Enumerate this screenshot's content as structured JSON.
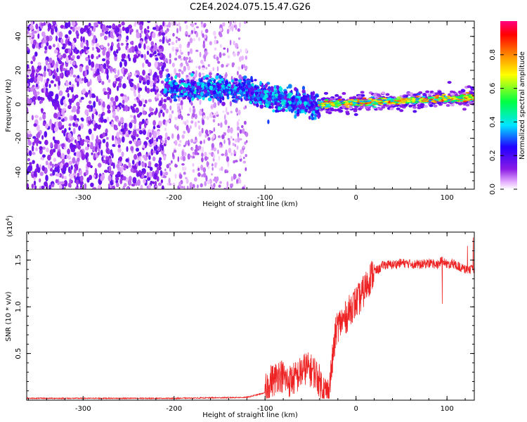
{
  "title": "C2E4.2024.075.15.47.G26",
  "colors": {
    "snr_line": "#ee2222",
    "colormap": [
      "#ffffff",
      "#e8b4ff",
      "#8a1be6",
      "#2200ff",
      "#00e5ff",
      "#00ff44",
      "#ffff00",
      "#ff8800",
      "#ff0000",
      "#ff0080"
    ]
  },
  "chart_data": [
    {
      "type": "heatmap",
      "xlabel": "Height of straight line (km)",
      "ylabel": "Frequency (Hz)",
      "xlim": [
        -362,
        130
      ],
      "ylim": [
        -50,
        49
      ],
      "xticks": [
        -300,
        -200,
        -100,
        0,
        100
      ],
      "yticks": [
        -40,
        -20,
        0,
        20,
        40
      ],
      "colorbar": {
        "label": "Normalized spectral amplitude",
        "range": [
          0,
          1
        ],
        "ticks": [
          0.0,
          0.2,
          0.4,
          0.6,
          0.8
        ]
      },
      "structure": [
        {
          "x_range": [
            -362,
            -210
          ],
          "desc": "broadband scattered noise",
          "freq_range": [
            -50,
            49
          ],
          "amplitude": 0.15
        },
        {
          "x_range": [
            -210,
            -120
          ],
          "desc": "faint noise with signal band",
          "freq_range": [
            -50,
            49
          ],
          "amplitude": 0.08
        },
        {
          "x_range": [
            -210,
            -120
          ],
          "desc": "signal band",
          "freq_center": 9,
          "amplitude": 0.3
        },
        {
          "x_range": [
            -120,
            -40
          ],
          "desc": "descending signal band",
          "freq_center_start": 8,
          "freq_center_end": -2,
          "amplitude": 0.3
        },
        {
          "x_range": [
            -40,
            130
          ],
          "desc": "narrow strong signal",
          "freq_center_start": 0,
          "freq_center_end": 4,
          "amplitude": 0.75
        }
      ]
    },
    {
      "type": "line",
      "xlabel": "Height of straight line (km)",
      "ylabel": "SNR (10 * v/v)",
      "y_multiplier_label": "(x10",
      "y_multiplier_exp": "4",
      "y_multiplier_close": ")",
      "xlim": [
        -362,
        130
      ],
      "ylim": [
        0,
        1.8
      ],
      "xticks": [
        -300,
        -200,
        -100,
        0,
        100
      ],
      "yticks": [
        0.5,
        1.0,
        1.5
      ],
      "ytick_labels": [
        "0.5",
        "1.0",
        "1.5"
      ],
      "series": [
        {
          "x": [
            -362,
            -300,
            -200,
            -120,
            -100,
            -95,
            -90,
            -85,
            -80,
            -75,
            -70,
            -65,
            -60,
            -55,
            -50,
            -45,
            -40,
            -35,
            -30,
            -25,
            -22,
            -20,
            -15,
            -10,
            -5,
            0,
            5,
            10,
            15,
            20,
            25,
            30,
            40,
            50,
            60,
            70,
            80,
            90,
            95,
            100,
            105,
            110,
            115,
            120,
            130
          ],
          "y": [
            0.02,
            0.02,
            0.02,
            0.03,
            0.08,
            0.2,
            0.22,
            0.28,
            0.25,
            0.2,
            0.22,
            0.25,
            0.3,
            0.35,
            0.32,
            0.3,
            0.2,
            0.1,
            0.08,
            0.5,
            0.75,
            0.8,
            0.85,
            0.9,
            1.0,
            1.05,
            1.1,
            1.2,
            1.3,
            1.38,
            1.4,
            1.45,
            1.45,
            1.47,
            1.46,
            1.45,
            1.47,
            1.45,
            1.5,
            1.45,
            1.47,
            1.45,
            1.42,
            1.4,
            1.4
          ]
        }
      ]
    }
  ]
}
